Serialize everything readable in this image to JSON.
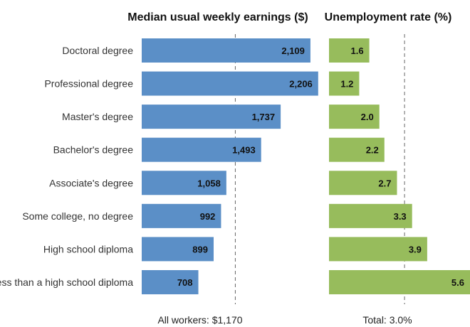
{
  "chart_data": [
    {
      "type": "bar",
      "orientation": "horizontal",
      "title": "Median usual weekly earnings ($)",
      "categories": [
        "Doctoral degree",
        "Professional degree",
        "Master's degree",
        "Bachelor's degree",
        "Associate's degree",
        "Some college, no degree",
        "High school diploma",
        "Less than a high school diploma"
      ],
      "values": [
        2109,
        2206,
        1737,
        1493,
        1058,
        992,
        899,
        708
      ],
      "value_labels": [
        "2,109",
        "2,206",
        "1,737",
        "1,493",
        "1,058",
        "992",
        "899",
        "708"
      ],
      "reference_line": {
        "value": 1170,
        "label": "All workers: $1,170"
      },
      "xlim": [
        0,
        2270
      ],
      "color": "#5b8fc7",
      "grid": false
    },
    {
      "type": "bar",
      "orientation": "horizontal",
      "title": "Unemployment rate (%)",
      "categories": [
        "Doctoral degree",
        "Professional degree",
        "Master's degree",
        "Bachelor's degree",
        "Associate's degree",
        "Some college, no degree",
        "High school diploma",
        "Less than a high school diploma"
      ],
      "values": [
        1.6,
        1.2,
        2.0,
        2.2,
        2.7,
        3.3,
        3.9,
        5.6
      ],
      "value_labels": [
        "1.6",
        "1.2",
        "2.0",
        "2.2",
        "2.7",
        "3.3",
        "3.9",
        "5.6"
      ],
      "reference_line": {
        "value": 3.0,
        "label": "Total: 3.0%"
      },
      "xlim": [
        0,
        5.6
      ],
      "color": "#97bc5c",
      "grid": false
    }
  ]
}
